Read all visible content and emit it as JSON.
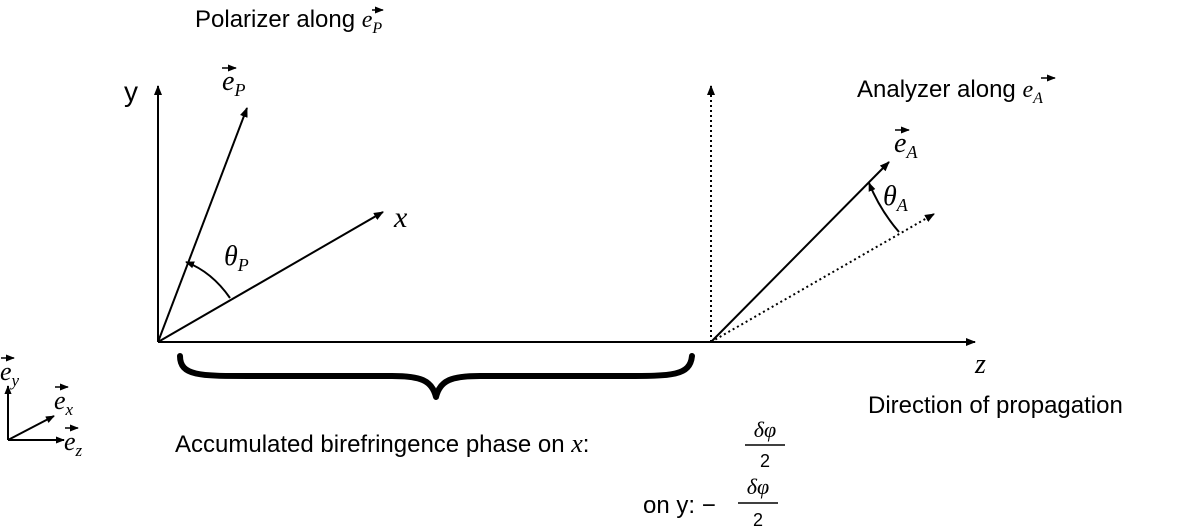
{
  "polarizer_label": "Polarizer along ",
  "analyzer_label": "Analyzer along ",
  "vec_e": "e",
  "sub_p": "P",
  "sub_a": "A",
  "sub_x": "x",
  "sub_y": "y",
  "sub_z": "z",
  "theta": "θ",
  "axis_y": "y",
  "axis_x": "x",
  "axis_z": "z",
  "direction_label": "Direction of propagation",
  "phase_label": "Accumulated birefringence phase on ",
  "phase_axis_x": "x",
  "colon": ":",
  "on_y_label": "on y: −",
  "delta_phi": "δφ",
  "two": "2",
  "arrow_glyph": "⃗"
}
